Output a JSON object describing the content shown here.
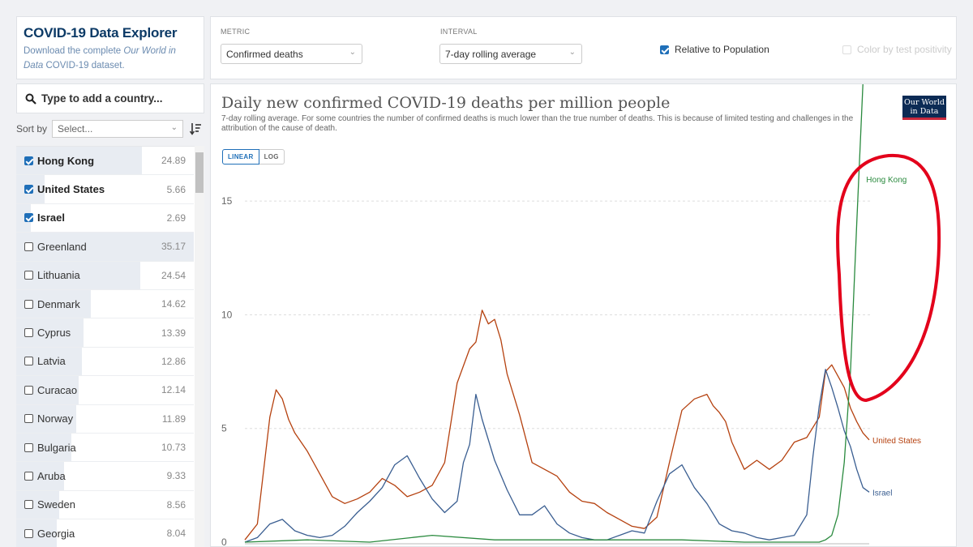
{
  "header": {
    "title": "COVID-19 Data Explorer",
    "desc_prefix": "Download the complete",
    "desc_link": "Our World in Data",
    "desc_suffix": "COVID-19 dataset."
  },
  "search": {
    "placeholder": "Type to add a country..."
  },
  "sort": {
    "label": "Sort by",
    "value": "Select..."
  },
  "countries": [
    {
      "name": "Hong Kong",
      "value": "24.89",
      "checked": true,
      "bar": 0.71
    },
    {
      "name": "United States",
      "value": "5.66",
      "checked": true,
      "bar": 0.16
    },
    {
      "name": "Israel",
      "value": "2.69",
      "checked": true,
      "bar": 0.08
    },
    {
      "name": "Greenland",
      "value": "35.17",
      "checked": false,
      "bar": 1.0
    },
    {
      "name": "Lithuania",
      "value": "24.54",
      "checked": false,
      "bar": 0.7
    },
    {
      "name": "Denmark",
      "value": "14.62",
      "checked": false,
      "bar": 0.42
    },
    {
      "name": "Cyprus",
      "value": "13.39",
      "checked": false,
      "bar": 0.38
    },
    {
      "name": "Latvia",
      "value": "12.86",
      "checked": false,
      "bar": 0.37
    },
    {
      "name": "Curacao",
      "value": "12.14",
      "checked": false,
      "bar": 0.35
    },
    {
      "name": "Norway",
      "value": "11.89",
      "checked": false,
      "bar": 0.34
    },
    {
      "name": "Bulgaria",
      "value": "10.73",
      "checked": false,
      "bar": 0.31
    },
    {
      "name": "Aruba",
      "value": "9.33",
      "checked": false,
      "bar": 0.27
    },
    {
      "name": "Sweden",
      "value": "8.56",
      "checked": false,
      "bar": 0.24
    },
    {
      "name": "Georgia",
      "value": "8.04",
      "checked": false,
      "bar": 0.23
    }
  ],
  "controls": {
    "metric_label": "METRIC",
    "metric_value": "Confirmed deaths",
    "interval_label": "INTERVAL",
    "interval_value": "7-day rolling average",
    "relative_label": "Relative to Population",
    "relative_checked": true,
    "positivity_label": "Color by test positivity",
    "positivity_checked": false
  },
  "chart_panel": {
    "logo_line1": "Our World",
    "logo_line2": "in Data",
    "linear_label": "LINEAR",
    "log_label": "LOG"
  },
  "colors": {
    "hong_kong": "#2a8a3e",
    "united_states": "#b5410f",
    "israel": "#3a5e91",
    "annotation": "#e3001b"
  },
  "chart_data": {
    "type": "line",
    "title": "Daily new confirmed COVID-19 deaths per million people",
    "subtitle": "7-day rolling average. For some countries the number of confirmed deaths is much lower than the true number of deaths. This is because of limited testing and challenges in the attribution of the cause of death.",
    "xlabel": "",
    "ylabel": "",
    "ylim": [
      0,
      18
    ],
    "yticks": [
      0,
      5,
      10,
      15
    ],
    "x_range": [
      0,
      100
    ],
    "series": [
      {
        "name": "United States",
        "x": [
          0,
          2,
          4,
          5,
          6,
          7,
          8,
          10,
          12,
          14,
          16,
          18,
          20,
          22,
          24,
          26,
          28,
          30,
          32,
          34,
          36,
          37,
          38,
          39,
          40,
          41,
          42,
          44,
          46,
          48,
          50,
          52,
          54,
          56,
          58,
          60,
          62,
          64,
          66,
          68,
          70,
          72,
          74,
          75,
          76,
          77,
          78,
          80,
          82,
          84,
          86,
          88,
          90,
          92,
          93,
          94,
          95,
          96,
          97,
          98,
          99,
          100
        ],
        "values": [
          0.1,
          0.8,
          5.5,
          6.7,
          6.3,
          5.4,
          4.8,
          4.0,
          3.0,
          2.0,
          1.7,
          1.9,
          2.2,
          2.8,
          2.5,
          2.0,
          2.2,
          2.5,
          3.5,
          7.0,
          8.5,
          8.8,
          10.2,
          9.6,
          9.8,
          8.9,
          7.4,
          5.6,
          3.5,
          3.2,
          2.9,
          2.2,
          1.8,
          1.7,
          1.3,
          1.0,
          0.7,
          0.6,
          1.1,
          3.5,
          5.8,
          6.3,
          6.5,
          6.0,
          5.7,
          5.3,
          4.4,
          3.2,
          3.6,
          3.2,
          3.6,
          4.4,
          4.6,
          5.5,
          7.5,
          7.8,
          7.3,
          6.8,
          5.9,
          5.3,
          4.8,
          4.5
        ]
      },
      {
        "name": "Israel",
        "x": [
          0,
          2,
          4,
          6,
          8,
          10,
          12,
          14,
          16,
          18,
          20,
          22,
          24,
          26,
          28,
          30,
          32,
          34,
          35,
          36,
          37,
          38,
          40,
          42,
          44,
          46,
          48,
          50,
          52,
          54,
          56,
          58,
          60,
          62,
          64,
          66,
          68,
          70,
          72,
          74,
          76,
          78,
          80,
          82,
          84,
          86,
          88,
          90,
          91,
          92,
          93,
          94,
          95,
          96,
          97,
          98,
          99,
          100
        ],
        "values": [
          0.0,
          0.2,
          0.8,
          1.0,
          0.5,
          0.3,
          0.2,
          0.3,
          0.7,
          1.3,
          1.8,
          2.4,
          3.4,
          3.8,
          2.8,
          1.9,
          1.3,
          1.8,
          3.5,
          4.3,
          6.5,
          5.4,
          3.6,
          2.3,
          1.2,
          1.2,
          1.6,
          0.8,
          0.4,
          0.2,
          0.1,
          0.1,
          0.3,
          0.5,
          0.4,
          1.8,
          3.0,
          3.4,
          2.4,
          1.7,
          0.8,
          0.5,
          0.4,
          0.2,
          0.1,
          0.2,
          0.3,
          1.2,
          3.8,
          6.0,
          7.6,
          6.8,
          5.9,
          4.9,
          4.2,
          3.2,
          2.4,
          2.2
        ]
      },
      {
        "name": "Hong Kong",
        "x": [
          0,
          10,
          20,
          30,
          40,
          50,
          60,
          70,
          80,
          90,
          92,
          93,
          94,
          95,
          96,
          97,
          98,
          99
        ],
        "values": [
          0.0,
          0.1,
          0.0,
          0.3,
          0.1,
          0.1,
          0.1,
          0.1,
          0.0,
          0.0,
          0.0,
          0.1,
          0.3,
          1.2,
          3.5,
          7.5,
          14.0,
          20.2
        ]
      }
    ]
  }
}
